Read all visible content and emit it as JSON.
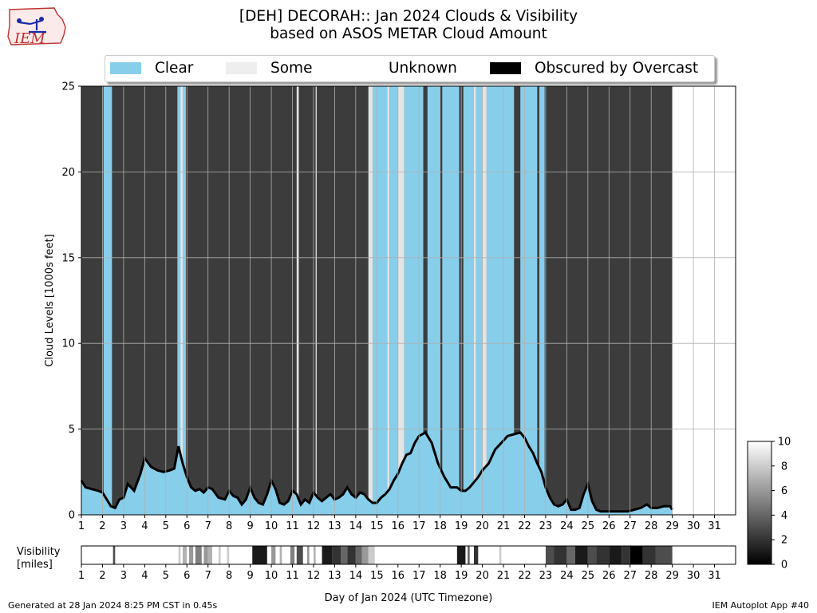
{
  "title": {
    "line1": "[DEH] DECORAH:: Jan 2024 Clouds & Visibility",
    "line2": "based on ASOS METAR Cloud Amount"
  },
  "logo": {
    "text": "IEM"
  },
  "legend": {
    "placement": "top-center",
    "items": [
      {
        "label": "Clear",
        "color": "#87ceeb"
      },
      {
        "label": "Some",
        "color": "#eeeeee"
      },
      {
        "label": "Unknown",
        "color": "#ffffff"
      },
      {
        "label": "Obscured by Overcast",
        "color": "#000000"
      }
    ]
  },
  "footer": {
    "left": "Generated at 28 Jan 2024 8:25 PM CST in 0.45s",
    "right": "IEM Autoplot App #40"
  },
  "chart_data": [
    {
      "type": "area",
      "ylabel": "Cloud Levels [1000s feet]",
      "xlabel": "",
      "xlim": [
        1,
        32
      ],
      "ylim": [
        0,
        25
      ],
      "yticks": [
        0,
        5,
        10,
        15,
        20,
        25
      ],
      "xticks": [
        "1",
        "2",
        "3",
        "4",
        "5",
        "6",
        "7",
        "8",
        "9",
        "10",
        "11",
        "12",
        "13",
        "14",
        "15",
        "16",
        "17",
        "18",
        "19",
        "20",
        "21",
        "22",
        "23",
        "24",
        "25",
        "26",
        "27",
        "28",
        "29",
        "30",
        "31"
      ],
      "grid": true,
      "data_end_day": 29.0,
      "overcast_color": "#3c3c3c",
      "clear_color": "#87ceeb",
      "cloud_base_profile": {
        "x": [
          1.0,
          1.2,
          1.5,
          1.8,
          2.0,
          2.4,
          2.6,
          2.8,
          3.0,
          3.2,
          3.5,
          3.8,
          4.0,
          4.3,
          4.6,
          4.9,
          5.2,
          5.4,
          5.6,
          5.8,
          6.0,
          6.2,
          6.4,
          6.6,
          6.8,
          7.0,
          7.2,
          7.5,
          7.8,
          8.0,
          8.2,
          8.4,
          8.6,
          8.8,
          9.0,
          9.2,
          9.4,
          9.6,
          9.8,
          10.0,
          10.2,
          10.4,
          10.6,
          10.8,
          11.0,
          11.2,
          11.4,
          11.6,
          11.8,
          12.0,
          12.2,
          12.4,
          12.6,
          12.8,
          13.0,
          13.2,
          13.4,
          13.6,
          13.8,
          14.0,
          14.2,
          14.4,
          14.6,
          14.8,
          15.0,
          15.2,
          15.4,
          15.6,
          15.8,
          16.0,
          16.2,
          16.4,
          16.6,
          16.8,
          17.0,
          17.3,
          17.6,
          17.9,
          18.2,
          18.5,
          18.8,
          19.0,
          19.2,
          19.4,
          19.6,
          19.8,
          20.0,
          20.3,
          20.6,
          20.9,
          21.2,
          21.5,
          21.8,
          22.0,
          22.2,
          22.4,
          22.6,
          22.8,
          23.0,
          23.2,
          23.4,
          23.6,
          23.8,
          24.0,
          24.2,
          24.4,
          24.6,
          24.8,
          25.0,
          25.2,
          25.4,
          25.6,
          25.8,
          26.0,
          26.3,
          26.6,
          26.9,
          27.2,
          27.5,
          27.8,
          28.0,
          28.3,
          28.6,
          28.9,
          29.0
        ],
        "y": [
          2.0,
          1.6,
          1.5,
          1.4,
          1.3,
          0.5,
          0.4,
          0.9,
          1.0,
          1.8,
          1.4,
          2.4,
          3.3,
          2.8,
          2.6,
          2.5,
          2.6,
          2.7,
          4.0,
          3.0,
          2.2,
          1.6,
          1.4,
          1.5,
          1.3,
          1.6,
          1.5,
          1.0,
          0.9,
          1.4,
          1.1,
          1.0,
          0.6,
          0.9,
          1.6,
          1.0,
          0.7,
          0.6,
          1.2,
          2.0,
          1.5,
          0.7,
          0.6,
          0.8,
          1.4,
          1.2,
          0.6,
          0.9,
          0.7,
          1.3,
          1.0,
          0.8,
          1.0,
          1.2,
          0.9,
          1.0,
          1.2,
          1.6,
          1.2,
          1.0,
          1.3,
          1.2,
          0.9,
          0.7,
          0.7,
          1.0,
          1.2,
          1.5,
          2.0,
          2.4,
          3.0,
          3.5,
          3.6,
          4.2,
          4.6,
          4.8,
          4.2,
          3.0,
          2.2,
          1.6,
          1.6,
          1.4,
          1.4,
          1.6,
          1.9,
          2.2,
          2.6,
          3.0,
          3.8,
          4.2,
          4.6,
          4.7,
          4.8,
          4.5,
          4.0,
          3.6,
          3.0,
          2.5,
          1.6,
          1.0,
          0.6,
          0.5,
          0.6,
          0.9,
          0.3,
          0.3,
          0.4,
          1.2,
          1.8,
          0.8,
          0.3,
          0.2,
          0.2,
          0.2,
          0.2,
          0.2,
          0.2,
          0.3,
          0.4,
          0.6,
          0.4,
          0.4,
          0.5,
          0.5,
          0.3
        ]
      },
      "clear_periods": [
        [
          2.05,
          2.45
        ],
        [
          5.55,
          5.95
        ],
        [
          14.8,
          15.5
        ],
        [
          15.6,
          16.0
        ],
        [
          16.3,
          17.2
        ],
        [
          17.4,
          18.0
        ],
        [
          18.1,
          18.9
        ],
        [
          19.1,
          19.6
        ],
        [
          19.7,
          20.0
        ],
        [
          20.2,
          21.5
        ],
        [
          21.8,
          22.6
        ],
        [
          22.7,
          22.95
        ]
      ],
      "some_periods": [
        [
          5.7,
          5.8
        ],
        [
          11.2,
          11.3
        ],
        [
          12.1,
          12.15
        ],
        [
          14.6,
          14.8
        ],
        [
          15.5,
          15.6
        ],
        [
          16.0,
          16.3
        ],
        [
          19.6,
          19.7
        ],
        [
          20.0,
          20.2
        ]
      ]
    },
    {
      "type": "heatmap",
      "ylabel": "Visibility\n[miles]",
      "xlabel": "Day of Jan 2024 (UTC Timezone)",
      "xlim": [
        1,
        32
      ],
      "colorbar": {
        "min": 0,
        "max": 10,
        "ticks": [
          "0",
          "2",
          "4",
          "6",
          "8",
          "10"
        ]
      },
      "data_end_day": 29.0,
      "low_visibility_segments": [
        {
          "x0": 2.5,
          "x1": 2.6,
          "value": 3
        },
        {
          "x0": 5.6,
          "x1": 5.7,
          "value": 8
        },
        {
          "x0": 5.8,
          "x1": 6.0,
          "value": 7
        },
        {
          "x0": 6.1,
          "x1": 6.3,
          "value": 6
        },
        {
          "x0": 6.4,
          "x1": 6.7,
          "value": 5
        },
        {
          "x0": 6.8,
          "x1": 7.0,
          "value": 6
        },
        {
          "x0": 7.0,
          "x1": 7.2,
          "value": 7
        },
        {
          "x0": 7.5,
          "x1": 7.6,
          "value": 8
        },
        {
          "x0": 7.9,
          "x1": 8.0,
          "value": 8
        },
        {
          "x0": 9.1,
          "x1": 9.8,
          "value": 1
        },
        {
          "x0": 10.0,
          "x1": 10.2,
          "value": 6
        },
        {
          "x0": 10.4,
          "x1": 10.5,
          "value": 7
        },
        {
          "x0": 10.9,
          "x1": 11.1,
          "value": 5
        },
        {
          "x0": 11.2,
          "x1": 11.5,
          "value": 3
        },
        {
          "x0": 11.7,
          "x1": 11.8,
          "value": 6
        },
        {
          "x0": 12.0,
          "x1": 12.1,
          "value": 7
        },
        {
          "x0": 12.4,
          "x1": 12.9,
          "value": 1
        },
        {
          "x0": 12.9,
          "x1": 13.3,
          "value": 2
        },
        {
          "x0": 13.3,
          "x1": 13.6,
          "value": 4
        },
        {
          "x0": 13.6,
          "x1": 14.0,
          "value": 2
        },
        {
          "x0": 14.0,
          "x1": 14.3,
          "value": 4
        },
        {
          "x0": 14.3,
          "x1": 14.6,
          "value": 6
        },
        {
          "x0": 14.6,
          "x1": 14.9,
          "value": 8
        },
        {
          "x0": 18.8,
          "x1": 19.2,
          "value": 1
        },
        {
          "x0": 19.3,
          "x1": 19.4,
          "value": 4
        },
        {
          "x0": 19.6,
          "x1": 19.8,
          "value": 2
        },
        {
          "x0": 20.8,
          "x1": 20.9,
          "value": 8
        },
        {
          "x0": 23.0,
          "x1": 23.4,
          "value": 3
        },
        {
          "x0": 23.4,
          "x1": 24.0,
          "value": 2
        },
        {
          "x0": 24.0,
          "x1": 24.4,
          "value": 4
        },
        {
          "x0": 24.4,
          "x1": 25.0,
          "value": 1
        },
        {
          "x0": 25.0,
          "x1": 25.4,
          "value": 3
        },
        {
          "x0": 25.4,
          "x1": 26.0,
          "value": 2
        },
        {
          "x0": 26.0,
          "x1": 26.6,
          "value": 1
        },
        {
          "x0": 26.6,
          "x1": 27.0,
          "value": 2
        },
        {
          "x0": 27.0,
          "x1": 27.6,
          "value": 0
        },
        {
          "x0": 27.6,
          "x1": 28.2,
          "value": 2
        },
        {
          "x0": 28.2,
          "x1": 29.0,
          "value": 3
        }
      ]
    }
  ]
}
